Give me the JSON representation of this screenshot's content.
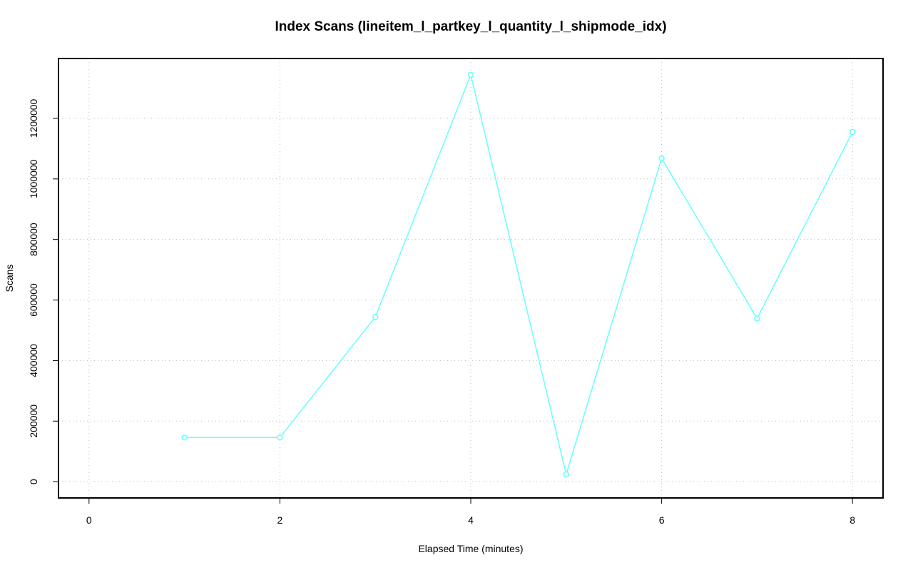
{
  "chart_data": {
    "type": "line",
    "title": "Index Scans (lineitem_l_partkey_l_quantity_l_shipmode_idx)",
    "x_label": "Elapsed Time (minutes)",
    "y_label": "Scans",
    "x": [
      1,
      2,
      3,
      4,
      5,
      6,
      7,
      8
    ],
    "series": [
      {
        "name": "Scans",
        "color": "#66ffff",
        "values": [
          146000,
          146000,
          544000,
          1344000,
          24000,
          1068000,
          539000,
          1155000
        ]
      }
    ],
    "xlim": [
      -0.32,
      8.32
    ],
    "ylim": [
      -53760,
      1397760
    ],
    "xticks": [
      0,
      2,
      4,
      6,
      8
    ],
    "yticks": [
      0,
      200000,
      400000,
      600000,
      800000,
      1000000,
      1200000
    ],
    "grid": true
  }
}
